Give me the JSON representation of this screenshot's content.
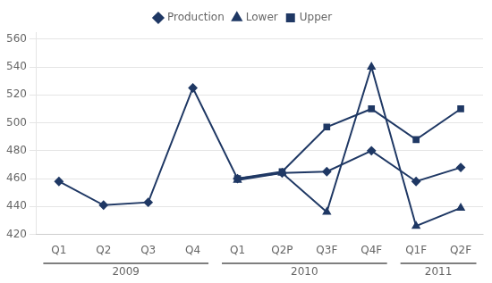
{
  "chart_data": {
    "type": "line",
    "categories": [
      "Q1",
      "Q2",
      "Q3",
      "Q4",
      "Q1",
      "Q2P",
      "Q3F",
      "Q4F",
      "Q1F",
      "Q2F"
    ],
    "series": [
      {
        "name": "Production",
        "color": "#1F3864",
        "marker": "diamond",
        "values": [
          458,
          441,
          443,
          525,
          460,
          464,
          465,
          480,
          458,
          468
        ]
      },
      {
        "name": "Lower",
        "color": "#1F3864",
        "marker": "triangle",
        "values": [
          null,
          null,
          null,
          null,
          459,
          464,
          436,
          540,
          426,
          439
        ]
      },
      {
        "name": "Upper",
        "color": "#1F3864",
        "marker": "square",
        "values": [
          null,
          null,
          null,
          null,
          460,
          465,
          497,
          510,
          488,
          510
        ]
      }
    ],
    "annotations": [
      {
        "text": "2009",
        "categories": [
          0,
          3
        ]
      },
      {
        "text": "2010",
        "categories": [
          4,
          7
        ]
      },
      {
        "text": "2011",
        "categories": [
          8,
          9
        ]
      }
    ],
    "ylim": [
      420,
      565
    ],
    "yticks": [
      420,
      440,
      460,
      480,
      500,
      520,
      540,
      560
    ],
    "grid": true,
    "legend": "top"
  }
}
